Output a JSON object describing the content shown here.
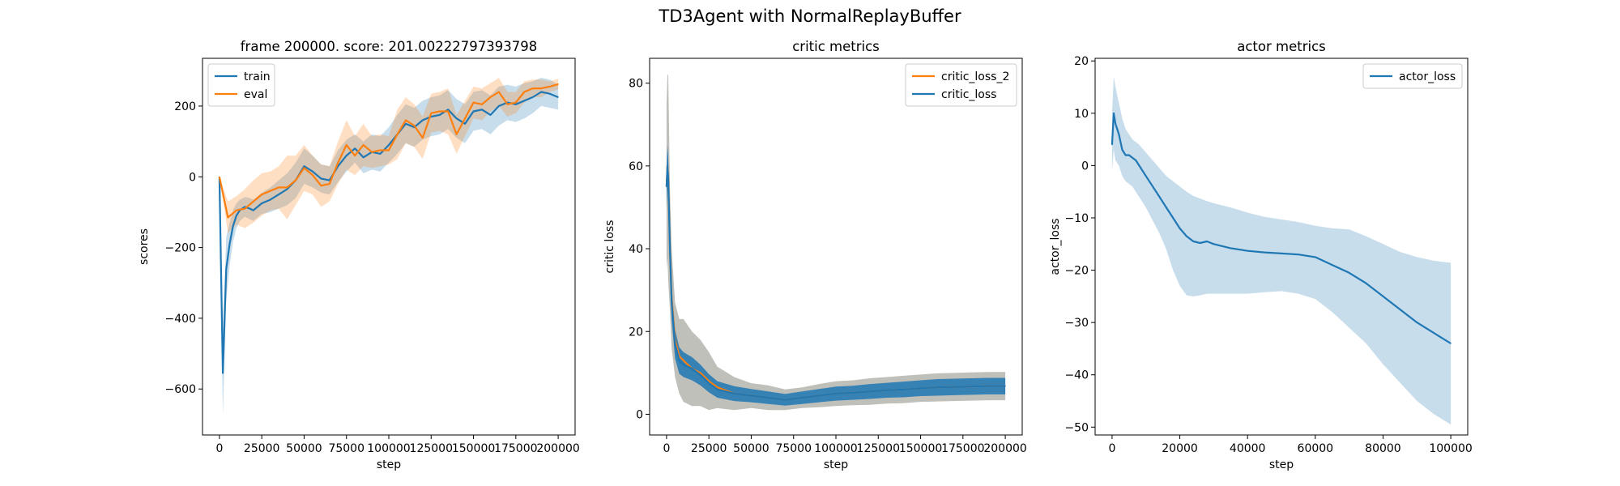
{
  "figure_title": "TD3Agent with NormalReplayBuffer",
  "colors": {
    "blue": "#1f77b4",
    "orange": "#ff7f0e",
    "band_blue": "#1f77b4",
    "band_orange": "#ff7f0e",
    "band_gray": "#8c8c82"
  },
  "chart_data": [
    {
      "type": "line",
      "title": "frame 200000. score: 201.00222797393798",
      "xlabel": "step",
      "ylabel": "scores",
      "xlim": [
        -10000,
        210000
      ],
      "ylim": [
        -730,
        335
      ],
      "xticks": [
        0,
        25000,
        50000,
        75000,
        100000,
        125000,
        150000,
        175000,
        200000
      ],
      "xtick_labels": [
        "0",
        "25000",
        "50000",
        "75000",
        "100000",
        "125000",
        "150000",
        "175000",
        "200000"
      ],
      "yticks": [
        -600,
        -400,
        -200,
        0,
        200
      ],
      "ytick_labels": [
        "−600",
        "−400",
        "−200",
        "0",
        "200"
      ],
      "legend": {
        "position": "top-left",
        "entries": [
          "train",
          "eval"
        ]
      },
      "series": [
        {
          "name": "train",
          "color": "#1f77b4",
          "x": [
            0,
            2000,
            4000,
            6000,
            8000,
            10000,
            12000,
            15000,
            18000,
            20000,
            25000,
            30000,
            35000,
            40000,
            45000,
            50000,
            55000,
            60000,
            65000,
            70000,
            75000,
            80000,
            85000,
            90000,
            95000,
            100000,
            105000,
            110000,
            115000,
            120000,
            125000,
            130000,
            135000,
            140000,
            145000,
            150000,
            155000,
            160000,
            165000,
            170000,
            175000,
            180000,
            185000,
            190000,
            195000,
            200000
          ],
          "values": [
            0,
            -555,
            -260,
            -190,
            -140,
            -110,
            -95,
            -85,
            -90,
            -95,
            -75,
            -65,
            -50,
            -35,
            -10,
            30,
            15,
            -5,
            -10,
            30,
            60,
            80,
            55,
            70,
            65,
            90,
            120,
            150,
            140,
            160,
            170,
            175,
            190,
            165,
            150,
            185,
            190,
            175,
            200,
            210,
            205,
            215,
            225,
            240,
            235,
            225
          ],
          "band_halfwidth": [
            0,
            120,
            90,
            60,
            45,
            35,
            30,
            28,
            30,
            30,
            30,
            35,
            40,
            45,
            50,
            50,
            45,
            40,
            40,
            45,
            45,
            40,
            45,
            50,
            50,
            50,
            55,
            55,
            55,
            55,
            55,
            55,
            55,
            55,
            55,
            55,
            55,
            55,
            55,
            50,
            50,
            50,
            45,
            40,
            40,
            35
          ]
        },
        {
          "name": "eval",
          "color": "#ff7f0e",
          "x": [
            0,
            5000,
            10000,
            15000,
            20000,
            25000,
            30000,
            35000,
            40000,
            45000,
            50000,
            55000,
            60000,
            65000,
            70000,
            75000,
            80000,
            85000,
            90000,
            95000,
            100000,
            105000,
            110000,
            115000,
            120000,
            125000,
            130000,
            135000,
            140000,
            145000,
            150000,
            155000,
            160000,
            165000,
            170000,
            175000,
            180000,
            185000,
            190000,
            195000,
            200000
          ],
          "values": [
            0,
            -115,
            -95,
            -90,
            -70,
            -50,
            -40,
            -30,
            -30,
            -10,
            25,
            5,
            -25,
            -20,
            40,
            90,
            60,
            90,
            70,
            75,
            75,
            120,
            160,
            145,
            110,
            180,
            185,
            185,
            120,
            165,
            210,
            205,
            225,
            240,
            205,
            210,
            240,
            250,
            250,
            255,
            262
          ],
          "band_halfwidth": [
            0,
            45,
            40,
            55,
            60,
            60,
            55,
            60,
            90,
            70,
            65,
            55,
            60,
            50,
            60,
            70,
            55,
            60,
            45,
            45,
            40,
            70,
            65,
            60,
            60,
            55,
            55,
            65,
            55,
            50,
            45,
            45,
            40,
            40,
            35,
            30,
            30,
            25,
            25,
            15,
            15
          ]
        }
      ]
    },
    {
      "type": "line",
      "title": "critic metrics",
      "xlabel": "step",
      "ylabel": "critic loss",
      "xlim": [
        -10000,
        210000
      ],
      "ylim": [
        -5,
        86
      ],
      "xticks": [
        0,
        25000,
        50000,
        75000,
        100000,
        125000,
        150000,
        175000,
        200000
      ],
      "xtick_labels": [
        "0",
        "25000",
        "50000",
        "75000",
        "100000",
        "125000",
        "150000",
        "175000",
        "200000"
      ],
      "yticks": [
        0,
        20,
        40,
        60,
        80
      ],
      "ytick_labels": [
        "0",
        "20",
        "40",
        "60",
        "80"
      ],
      "legend": {
        "position": "top-right",
        "entries": [
          "critic_loss_2",
          "critic_loss"
        ]
      },
      "series": [
        {
          "name": "critic_loss_2",
          "color": "#ff7f0e",
          "x": [
            0,
            500,
            1000,
            2000,
            3000,
            5000,
            7500,
            10000,
            15000,
            20000,
            25000,
            30000,
            40000,
            50000,
            60000,
            70000,
            80000,
            90000,
            100000,
            110000,
            120000,
            130000,
            140000,
            150000,
            160000,
            170000,
            180000,
            190000,
            200000
          ],
          "values": [
            55,
            60,
            57,
            40,
            28,
            18,
            14,
            13,
            11,
            10,
            8,
            6.5,
            5,
            4.5,
            4,
            3.5,
            4,
            4.5,
            5,
            5.2,
            5.5,
            5.8,
            6,
            6.3,
            6.5,
            6.6,
            6.7,
            6.8,
            6.8
          ],
          "band_halfwidth": [
            20,
            22,
            25,
            15,
            12,
            9,
            9,
            10,
            9,
            8,
            7,
            5,
            4,
            3,
            3,
            2.5,
            2.5,
            2.8,
            3,
            3,
            3.2,
            3.2,
            3.3,
            3.3,
            3.4,
            3.4,
            3.4,
            3.4,
            3.4
          ]
        },
        {
          "name": "critic_loss",
          "color": "#1f77b4",
          "x": [
            0,
            500,
            1000,
            2000,
            3000,
            5000,
            7500,
            10000,
            15000,
            20000,
            25000,
            30000,
            40000,
            50000,
            60000,
            70000,
            80000,
            90000,
            100000,
            110000,
            120000,
            130000,
            140000,
            150000,
            160000,
            170000,
            180000,
            190000,
            200000
          ],
          "values": [
            55,
            60,
            57,
            40,
            27,
            17,
            13,
            12,
            11,
            9.5,
            7.5,
            6,
            5,
            4.5,
            4,
            3.5,
            4,
            4.5,
            5,
            5.2,
            5.5,
            5.8,
            6,
            6.3,
            6.5,
            6.6,
            6.7,
            6.8,
            6.8
          ],
          "band_halfwidth": [
            5,
            5,
            5,
            4,
            4,
            3.5,
            3.2,
            3,
            2.8,
            2.5,
            2.2,
            2,
            1.8,
            1.6,
            1.5,
            1.4,
            1.5,
            1.6,
            1.7,
            1.7,
            1.8,
            1.8,
            1.9,
            1.9,
            2,
            2,
            2,
            2,
            2
          ]
        }
      ]
    },
    {
      "type": "line",
      "title": "actor metrics",
      "xlabel": "step",
      "ylabel": "actor_loss",
      "xlim": [
        -5000,
        105000
      ],
      "ylim": [
        -51.5,
        20.5
      ],
      "xticks": [
        0,
        20000,
        40000,
        60000,
        80000,
        100000
      ],
      "xtick_labels": [
        "0",
        "20000",
        "40000",
        "60000",
        "80000",
        "100000"
      ],
      "yticks": [
        -50,
        -40,
        -30,
        -20,
        -10,
        0,
        10,
        20
      ],
      "ytick_labels": [
        "−50",
        "−40",
        "−30",
        "−20",
        "−10",
        "0",
        "10",
        "20"
      ],
      "legend": {
        "position": "top-right",
        "entries": [
          "actor_loss"
        ]
      },
      "series": [
        {
          "name": "actor_loss",
          "color": "#1f77b4",
          "x": [
            0,
            500,
            1000,
            2000,
            3000,
            4000,
            5000,
            6000,
            7000,
            8000,
            10000,
            12000,
            14000,
            16000,
            18000,
            20000,
            22000,
            24000,
            26000,
            28000,
            30000,
            35000,
            40000,
            45000,
            50000,
            55000,
            60000,
            65000,
            70000,
            75000,
            80000,
            85000,
            90000,
            95000,
            100000
          ],
          "values": [
            4,
            10,
            8,
            6,
            3,
            2,
            2,
            1.5,
            1,
            0,
            -2,
            -4,
            -6,
            -8,
            -10,
            -12,
            -13.5,
            -14.5,
            -14.8,
            -14.5,
            -15,
            -15.8,
            -16.3,
            -16.6,
            -16.8,
            -17,
            -17.5,
            -19,
            -20.5,
            -22.5,
            -25,
            -27.5,
            -30,
            -32,
            -34
          ],
          "band_upper": [
            10,
            17,
            15,
            12,
            9,
            7,
            6,
            5,
            4.5,
            4,
            2.5,
            1,
            -0.5,
            -2,
            -3,
            -4,
            -5,
            -5.8,
            -6.3,
            -6.8,
            -7.2,
            -8,
            -9,
            -9.8,
            -10.3,
            -10.8,
            -11.5,
            -12,
            -12.2,
            -13.5,
            -15,
            -16.5,
            -17.5,
            -18.2,
            -18.6
          ],
          "band_lower": [
            -1,
            3,
            1,
            0,
            -2,
            -3,
            -3.5,
            -4,
            -5,
            -6,
            -8,
            -10.5,
            -13,
            -16,
            -20,
            -23,
            -24.8,
            -25,
            -24.8,
            -24.5,
            -24.5,
            -24.5,
            -24.5,
            -24.2,
            -24,
            -24.5,
            -25.5,
            -28,
            -31,
            -34,
            -38,
            -41.5,
            -45,
            -47.5,
            -49.5
          ]
        }
      ]
    }
  ]
}
